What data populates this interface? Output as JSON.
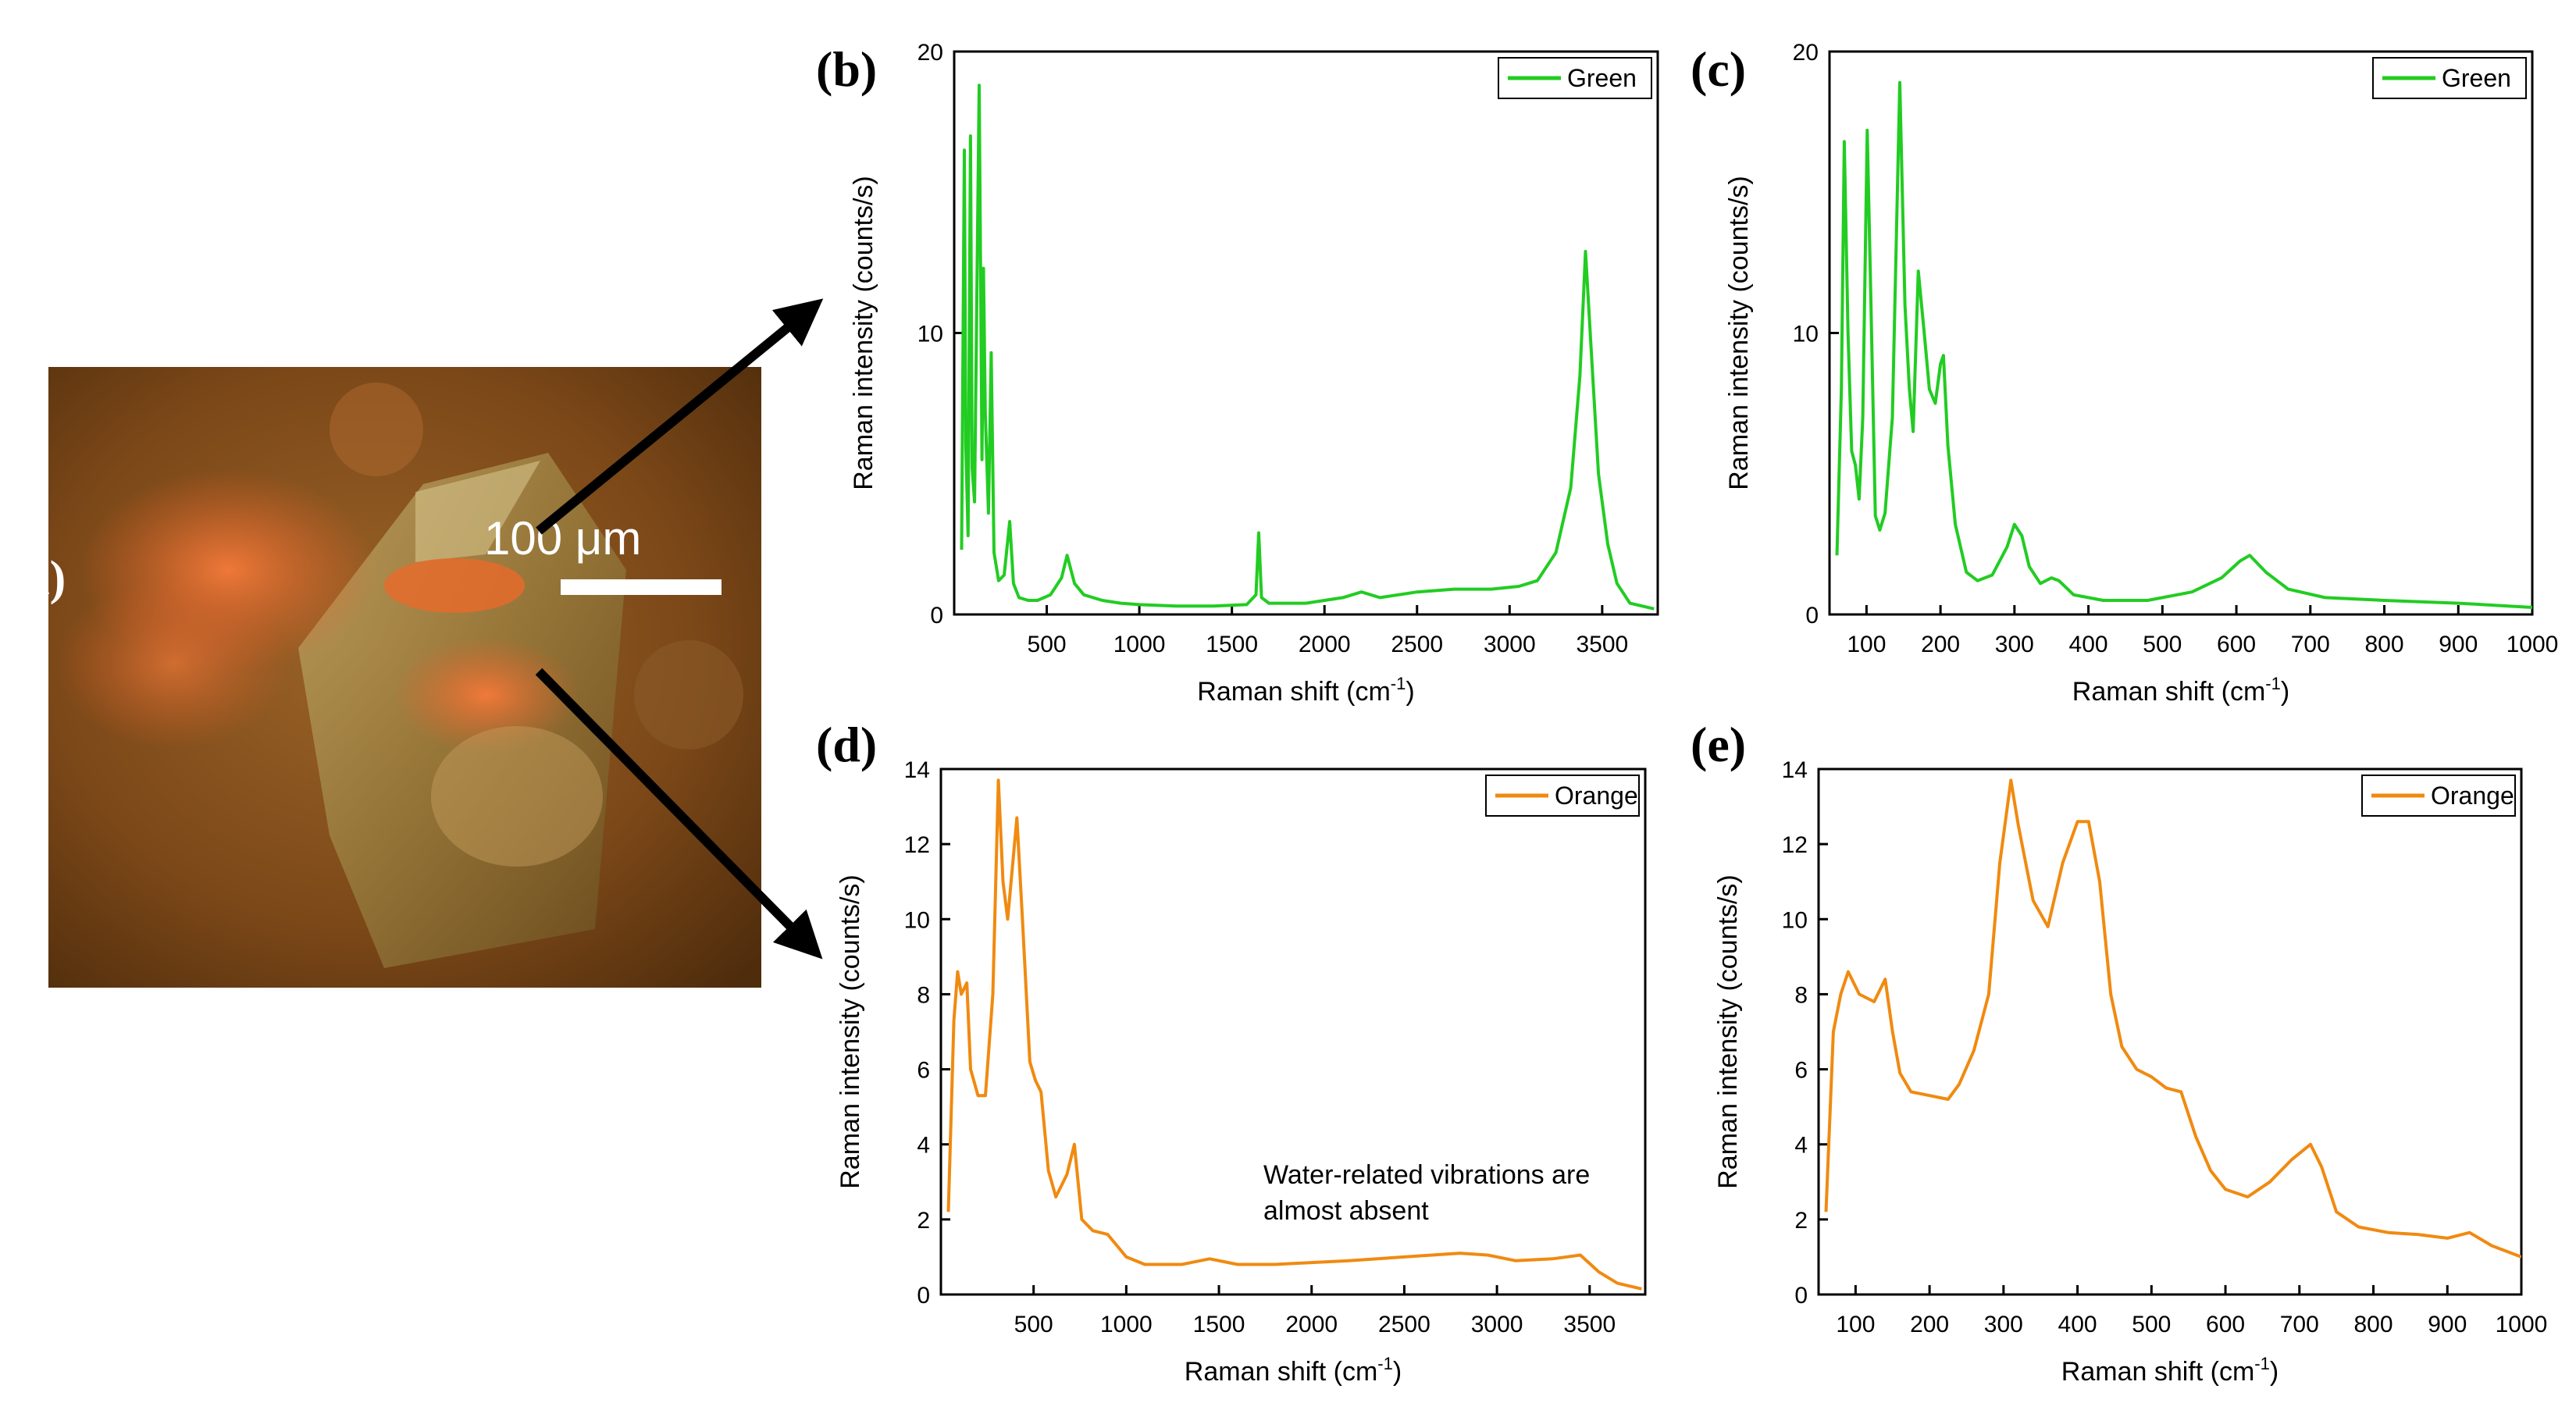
{
  "figure": {
    "micrograph": {
      "panel_label": "(a)",
      "scale_bar_label": "100 μm",
      "colors": {
        "background": "#8a5220",
        "orange_patch": "#e86a2a",
        "crystal": "#b8a46a"
      }
    },
    "arrow_color": "#000000"
  },
  "chart_data": [
    {
      "panel_label": "(b)",
      "type": "line",
      "xlabel": "Raman shift (cm",
      "xlabel_sup": "-1",
      "xlabel_end": ")",
      "ylabel": "Raman intensity (counts/s)",
      "xlim": [
        0,
        3800
      ],
      "ylim": [
        0,
        20
      ],
      "xticks": [
        500,
        1000,
        1500,
        2000,
        2500,
        3000,
        3500
      ],
      "yticks": [
        0,
        10,
        20
      ],
      "legend": {
        "position": "top-right",
        "label": "Green"
      },
      "color": "#22cc22",
      "series": [
        {
          "name": "Green",
          "points": [
            [
              40,
              2.3
            ],
            [
              55,
              16.5
            ],
            [
              63,
              6
            ],
            [
              75,
              2.8
            ],
            [
              88,
              17
            ],
            [
              97,
              5.2
            ],
            [
              110,
              4
            ],
            [
              135,
              18.8
            ],
            [
              150,
              5.5
            ],
            [
              158,
              12.3
            ],
            [
              168,
              7.2
            ],
            [
              185,
              3.6
            ],
            [
              200,
              9.3
            ],
            [
              215,
              2.2
            ],
            [
              240,
              1.2
            ],
            [
              270,
              1.4
            ],
            [
              300,
              3.3
            ],
            [
              320,
              1.1
            ],
            [
              350,
              0.6
            ],
            [
              400,
              0.5
            ],
            [
              450,
              0.5
            ],
            [
              520,
              0.7
            ],
            [
              580,
              1.3
            ],
            [
              610,
              2.1
            ],
            [
              650,
              1.1
            ],
            [
              700,
              0.7
            ],
            [
              800,
              0.5
            ],
            [
              900,
              0.4
            ],
            [
              1000,
              0.35
            ],
            [
              1200,
              0.3
            ],
            [
              1400,
              0.3
            ],
            [
              1580,
              0.35
            ],
            [
              1630,
              0.7
            ],
            [
              1645,
              2.9
            ],
            [
              1660,
              0.6
            ],
            [
              1700,
              0.4
            ],
            [
              1900,
              0.4
            ],
            [
              2100,
              0.6
            ],
            [
              2200,
              0.8
            ],
            [
              2300,
              0.6
            ],
            [
              2500,
              0.8
            ],
            [
              2700,
              0.9
            ],
            [
              2900,
              0.9
            ],
            [
              3050,
              1
            ],
            [
              3150,
              1.2
            ],
            [
              3250,
              2.2
            ],
            [
              3330,
              4.5
            ],
            [
              3380,
              8.5
            ],
            [
              3410,
              12.9
            ],
            [
              3440,
              9.5
            ],
            [
              3480,
              5
            ],
            [
              3530,
              2.5
            ],
            [
              3580,
              1.1
            ],
            [
              3650,
              0.4
            ],
            [
              3780,
              0.2
            ]
          ]
        }
      ]
    },
    {
      "panel_label": "(c)",
      "type": "line",
      "xlabel": "Raman shift (cm",
      "xlabel_sup": "-1",
      "xlabel_end": ")",
      "ylabel": "Raman intensity (counts/s)",
      "xlim": [
        50,
        1000
      ],
      "ylim": [
        0,
        20
      ],
      "xticks": [
        100,
        200,
        300,
        400,
        500,
        600,
        700,
        800,
        900,
        1000
      ],
      "yticks": [
        0,
        10,
        20
      ],
      "legend": {
        "position": "top-right",
        "label": "Green"
      },
      "color": "#22cc22",
      "series": [
        {
          "name": "Green",
          "points": [
            [
              60,
              2.1
            ],
            [
              66,
              8
            ],
            [
              70,
              16.8
            ],
            [
              75,
              10
            ],
            [
              80,
              5.8
            ],
            [
              85,
              5.3
            ],
            [
              90,
              4.1
            ],
            [
              95,
              7
            ],
            [
              101,
              17.2
            ],
            [
              106,
              11
            ],
            [
              112,
              3.5
            ],
            [
              118,
              3
            ],
            [
              125,
              3.6
            ],
            [
              135,
              7
            ],
            [
              145,
              18.9
            ],
            [
              152,
              11
            ],
            [
              158,
              8
            ],
            [
              163,
              6.5
            ],
            [
              170,
              12.2
            ],
            [
              178,
              10
            ],
            [
              185,
              8
            ],
            [
              193,
              7.5
            ],
            [
              200,
              8.9
            ],
            [
              204,
              9.2
            ],
            [
              210,
              6
            ],
            [
              220,
              3.2
            ],
            [
              235,
              1.5
            ],
            [
              250,
              1.2
            ],
            [
              270,
              1.4
            ],
            [
              290,
              2.4
            ],
            [
              300,
              3.2
            ],
            [
              310,
              2.8
            ],
            [
              320,
              1.7
            ],
            [
              335,
              1.1
            ],
            [
              350,
              1.3
            ],
            [
              360,
              1.2
            ],
            [
              380,
              0.7
            ],
            [
              420,
              0.5
            ],
            [
              480,
              0.5
            ],
            [
              540,
              0.8
            ],
            [
              580,
              1.3
            ],
            [
              605,
              1.9
            ],
            [
              618,
              2.1
            ],
            [
              640,
              1.5
            ],
            [
              670,
              0.9
            ],
            [
              720,
              0.6
            ],
            [
              800,
              0.5
            ],
            [
              900,
              0.4
            ],
            [
              1000,
              0.25
            ]
          ]
        }
      ]
    },
    {
      "panel_label": "(d)",
      "type": "line",
      "xlabel": "Raman shift (cm",
      "xlabel_sup": "-1",
      "xlabel_end": ")",
      "ylabel": "Raman intensity (counts/s)",
      "xlim": [
        0,
        3800
      ],
      "ylim": [
        0,
        14
      ],
      "xticks": [
        500,
        1000,
        1500,
        2000,
        2500,
        3000,
        3500
      ],
      "yticks": [
        0,
        2,
        4,
        6,
        8,
        10,
        12,
        14
      ],
      "legend": {
        "position": "top-right",
        "label": "Orange"
      },
      "annotation": [
        "Water-related vibrations are",
        "almost absent"
      ],
      "color": "#f08a10",
      "series": [
        {
          "name": "Orange",
          "points": [
            [
              40,
              2.2
            ],
            [
              70,
              7.3
            ],
            [
              90,
              8.6
            ],
            [
              110,
              8
            ],
            [
              140,
              8.3
            ],
            [
              160,
              6
            ],
            [
              200,
              5.3
            ],
            [
              240,
              5.3
            ],
            [
              280,
              8
            ],
            [
              310,
              13.7
            ],
            [
              335,
              11
            ],
            [
              360,
              10
            ],
            [
              410,
              12.7
            ],
            [
              440,
              10
            ],
            [
              480,
              6.2
            ],
            [
              510,
              5.7
            ],
            [
              540,
              5.4
            ],
            [
              580,
              3.3
            ],
            [
              620,
              2.6
            ],
            [
              680,
              3.2
            ],
            [
              720,
              4
            ],
            [
              760,
              2
            ],
            [
              820,
              1.7
            ],
            [
              900,
              1.6
            ],
            [
              1000,
              1
            ],
            [
              1100,
              0.8
            ],
            [
              1300,
              0.8
            ],
            [
              1450,
              0.95
            ],
            [
              1600,
              0.8
            ],
            [
              1800,
              0.8
            ],
            [
              2000,
              0.85
            ],
            [
              2200,
              0.9
            ],
            [
              2500,
              1
            ],
            [
              2800,
              1.1
            ],
            [
              2950,
              1.05
            ],
            [
              3100,
              0.9
            ],
            [
              3300,
              0.95
            ],
            [
              3450,
              1.05
            ],
            [
              3550,
              0.6
            ],
            [
              3650,
              0.3
            ],
            [
              3780,
              0.15
            ]
          ]
        }
      ]
    },
    {
      "panel_label": "(e)",
      "type": "line",
      "xlabel": "Raman shift (cm",
      "xlabel_sup": "-1",
      "xlabel_end": ")",
      "ylabel": "Raman intensity (counts/s)",
      "xlim": [
        50,
        1000
      ],
      "ylim": [
        0,
        14
      ],
      "xticks": [
        100,
        200,
        300,
        400,
        500,
        600,
        700,
        800,
        900,
        1000
      ],
      "yticks": [
        0,
        2,
        4,
        6,
        8,
        10,
        12,
        14
      ],
      "legend": {
        "position": "top-right",
        "label": "Orange"
      },
      "color": "#f08a10",
      "series": [
        {
          "name": "Orange",
          "points": [
            [
              60,
              2.2
            ],
            [
              70,
              7
            ],
            [
              80,
              8
            ],
            [
              90,
              8.6
            ],
            [
              105,
              8
            ],
            [
              125,
              7.8
            ],
            [
              140,
              8.4
            ],
            [
              150,
              7
            ],
            [
              160,
              5.9
            ],
            [
              175,
              5.4
            ],
            [
              200,
              5.3
            ],
            [
              225,
              5.2
            ],
            [
              240,
              5.6
            ],
            [
              260,
              6.5
            ],
            [
              280,
              8
            ],
            [
              295,
              11.5
            ],
            [
              310,
              13.7
            ],
            [
              320,
              12.5
            ],
            [
              340,
              10.5
            ],
            [
              360,
              9.8
            ],
            [
              380,
              11.5
            ],
            [
              400,
              12.6
            ],
            [
              415,
              12.6
            ],
            [
              430,
              11
            ],
            [
              445,
              8
            ],
            [
              460,
              6.6
            ],
            [
              480,
              6
            ],
            [
              500,
              5.8
            ],
            [
              520,
              5.5
            ],
            [
              540,
              5.4
            ],
            [
              560,
              4.2
            ],
            [
              580,
              3.3
            ],
            [
              600,
              2.8
            ],
            [
              630,
              2.6
            ],
            [
              660,
              3
            ],
            [
              690,
              3.6
            ],
            [
              715,
              4
            ],
            [
              730,
              3.4
            ],
            [
              750,
              2.2
            ],
            [
              780,
              1.8
            ],
            [
              820,
              1.65
            ],
            [
              860,
              1.6
            ],
            [
              900,
              1.5
            ],
            [
              930,
              1.65
            ],
            [
              960,
              1.3
            ],
            [
              1000,
              1
            ]
          ]
        }
      ]
    }
  ]
}
